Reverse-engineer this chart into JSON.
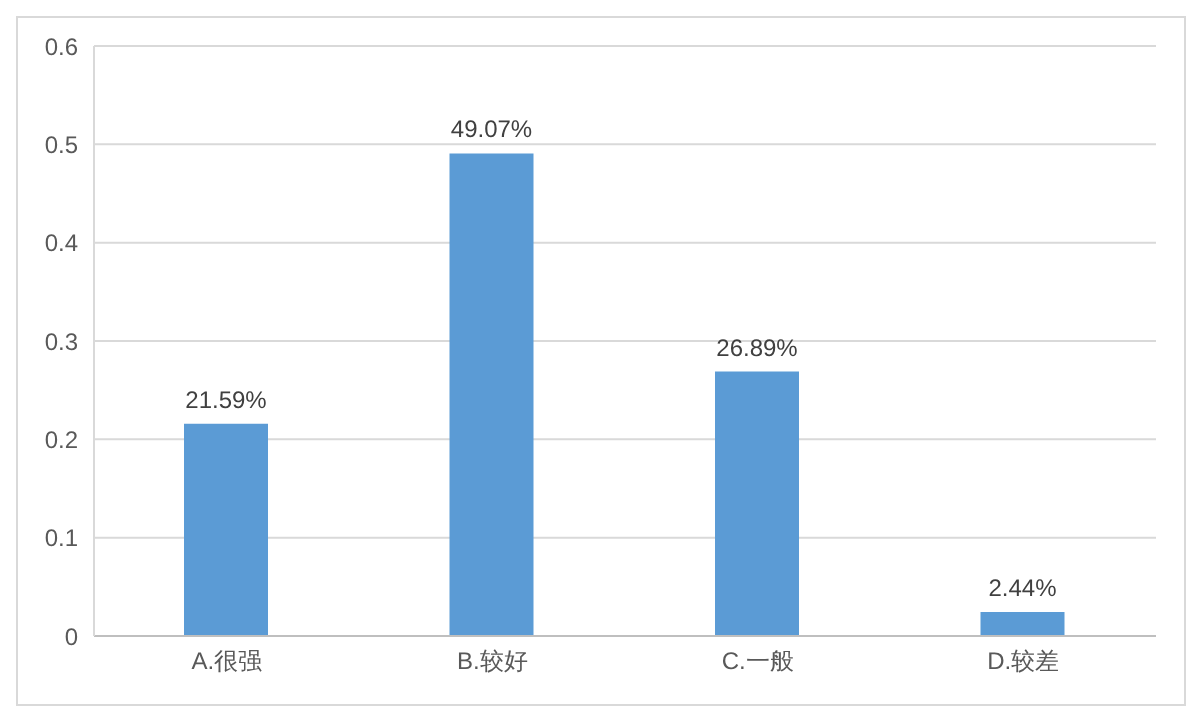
{
  "chart_data": {
    "type": "bar",
    "categories": [
      "A.很强",
      "B.较好",
      "C.一般",
      "D.较差"
    ],
    "values": [
      0.2159,
      0.4907,
      0.2689,
      0.0244
    ],
    "value_labels": [
      "21.59%",
      "49.07%",
      "26.89%",
      "2.44%"
    ],
    "color": "#5b9bd5",
    "ylim": [
      0,
      0.6
    ],
    "yticks": [
      0,
      0.1,
      0.2,
      0.3,
      0.4,
      0.5,
      0.6
    ],
    "grid": "y",
    "legend": false
  }
}
